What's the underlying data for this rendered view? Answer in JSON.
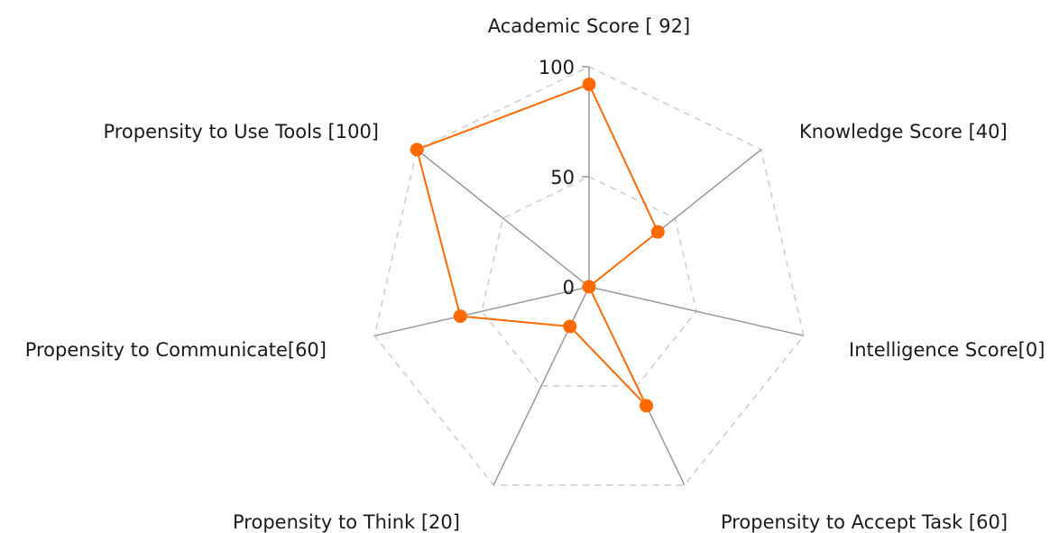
{
  "chart_data": {
    "type": "radar",
    "categories": [
      "Academic Score [ 92]",
      "Knowledge Score [40]",
      "Intelligence Score[0]",
      "Propensity to Accept Task [60]",
      "Propensity to Think [20]",
      "Propensity to Communicate[60]",
      "Propensity to Use Tools [100]"
    ],
    "series": [
      {
        "values": [
          92,
          40,
          0,
          60,
          20,
          60,
          100
        ]
      }
    ],
    "radial_ticks": [
      0,
      50,
      100
    ],
    "range": [
      0,
      100
    ],
    "grid": "dashed polygons",
    "colors": {
      "series": "#ff6a00",
      "axis": "#999999",
      "grid": "#cccccc"
    }
  }
}
